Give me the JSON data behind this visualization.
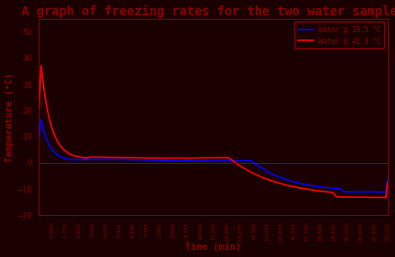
{
  "title": "A graph of freezing rates for the two water samples",
  "xlabel": "Time (min)",
  "ylabel": "Temperature (°C)",
  "legend_blue": "Water @ 19.5 °C",
  "legend_red": "Water @ 42.9 °C",
  "bg_color": "#1a0000",
  "plot_bg_color": "#1a0000",
  "line_color_blue": "#0000ff",
  "line_color_red": "#ff0000",
  "text_color": "#8b0000",
  "axis_color": "#8b0000",
  "title_color": "#8b0000",
  "ylim": [
    -20,
    55
  ],
  "yticks": [
    -20,
    -10,
    0,
    10,
    20,
    30,
    40,
    50
  ],
  "xlim": [
    0,
    23.01
  ],
  "x_step": 0.885,
  "title_fontsize": 10,
  "label_fontsize": 7.5
}
